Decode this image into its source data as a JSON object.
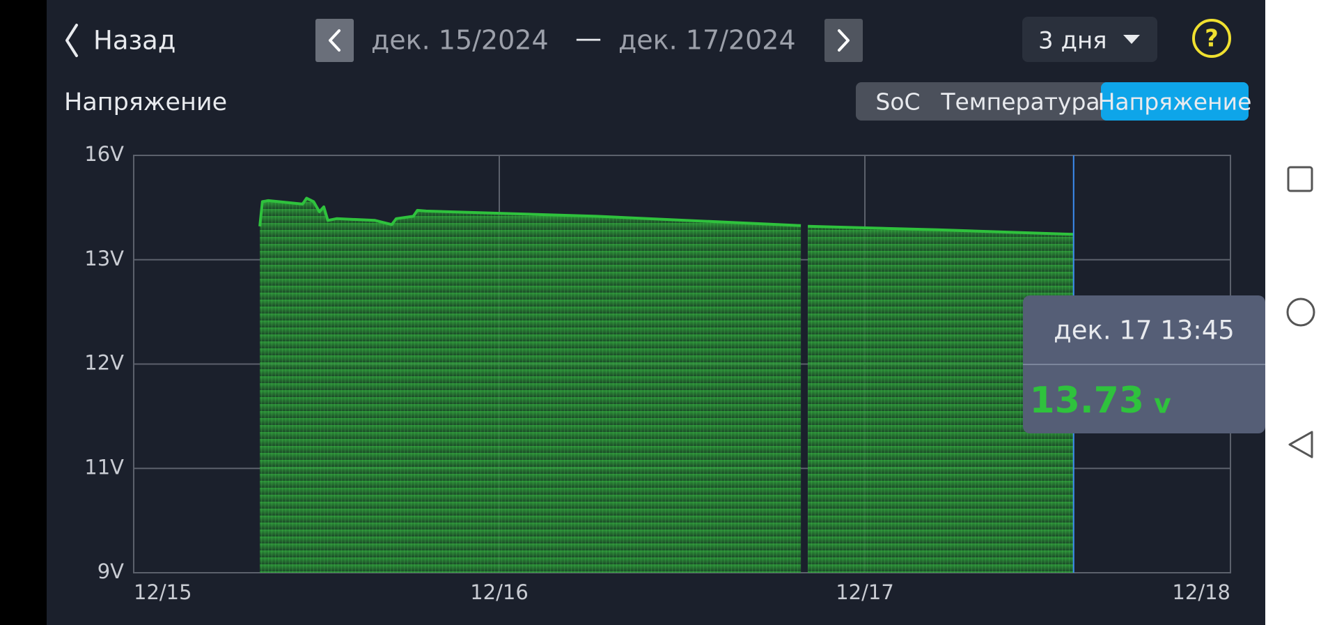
{
  "header": {
    "back": "Назад",
    "date_from": "дек. 15/2024",
    "separator": "—",
    "date_to": "дек. 17/2024",
    "range": "3 дня",
    "help": "?"
  },
  "tabs": [
    {
      "label": "SoC",
      "selected": false
    },
    {
      "label": "Температура",
      "selected": false
    },
    {
      "label": "Напряжение",
      "selected": true
    }
  ],
  "tooltip": {
    "label": "дек. 17 13:45",
    "value": "13.73",
    "unit": "v"
  },
  "chart_data": {
    "type": "area",
    "title": "Напряжение",
    "x": [
      0.345,
      0.352,
      0.368,
      0.462,
      0.473,
      0.492,
      0.508,
      0.52,
      0.531,
      0.555,
      0.66,
      0.706,
      0.718,
      0.765,
      0.776,
      0.8,
      1.266,
      1.825,
      1.835,
      1.844,
      2.198,
      2.571
    ],
    "values": [
      13.96,
      14.67,
      14.7,
      14.6,
      14.77,
      14.67,
      14.38,
      14.52,
      14.13,
      14.18,
      14.13,
      14.01,
      14.18,
      14.25,
      14.42,
      14.4,
      14.25,
      13.98,
      null,
      13.96,
      13.86,
      13.73
    ],
    "color": "#2fc23d",
    "xlim": [
      0,
      3
    ],
    "xticks": [
      {
        "value": 0,
        "label": "12/15"
      },
      {
        "value": 1,
        "label": "12/16"
      },
      {
        "value": 2,
        "label": "12/17"
      },
      {
        "value": 3,
        "label": "12/18"
      }
    ],
    "ylim": [
      9,
      16
    ],
    "yticks": [
      {
        "value": 9,
        "label": "9V"
      },
      {
        "value": 11,
        "label": "11V"
      },
      {
        "value": 12,
        "label": "12V"
      },
      {
        "value": 13,
        "label": "13V"
      },
      {
        "value": 16,
        "label": "16V"
      }
    ],
    "grid": true
  }
}
